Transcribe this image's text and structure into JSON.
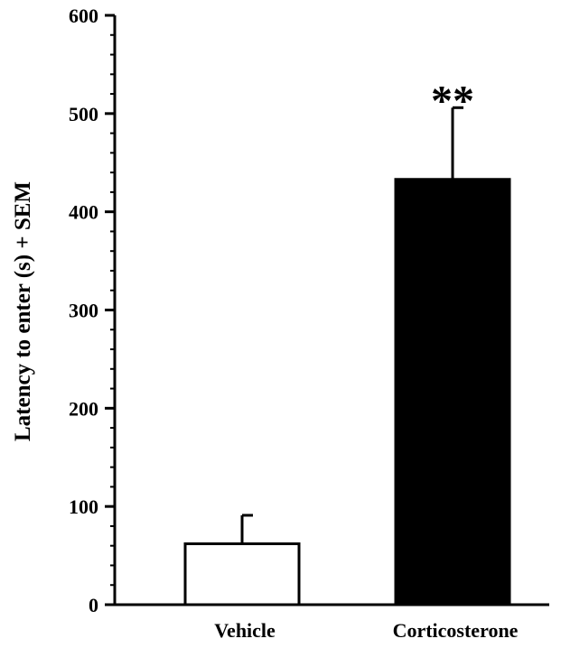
{
  "chart_data": {
    "type": "bar",
    "categories": [
      "Vehicle",
      "Corticosterone"
    ],
    "values": [
      62,
      433
    ],
    "errors": [
      29,
      73
    ],
    "bar_colors": [
      "#ffffff",
      "#000000"
    ],
    "title": "",
    "xlabel": "",
    "ylabel": "Latency to enter (s) + SEM",
    "ylim": [
      0,
      600
    ],
    "yticks": [
      0,
      100,
      200,
      300,
      400,
      500,
      600
    ],
    "minor_tick_step": 20,
    "annotations": [
      {
        "category": "Corticosterone",
        "text": "**"
      }
    ],
    "grid": false,
    "legend": "none"
  }
}
